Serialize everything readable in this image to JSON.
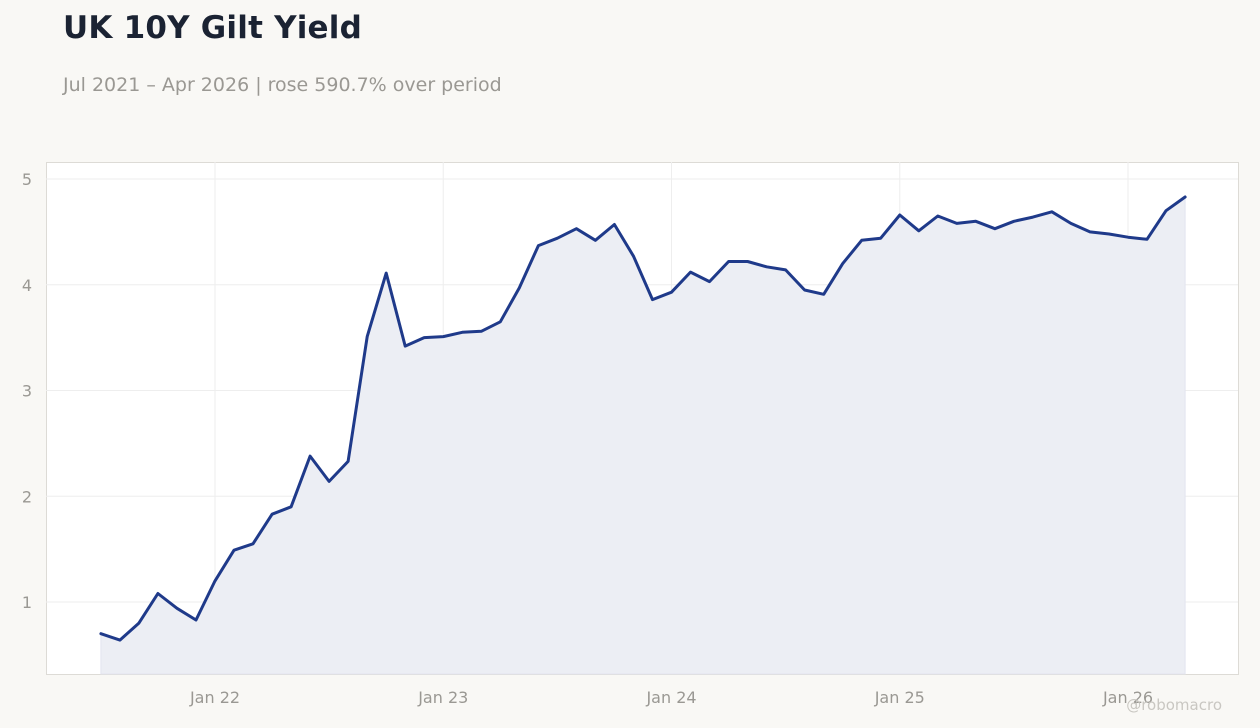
{
  "chart_data": {
    "type": "area",
    "title": "UK 10Y Gilt Yield",
    "subtitle": "Jul 2021 – Apr 2026 | rose 590.7% over period",
    "xlabel": "",
    "ylabel": "",
    "x_start": "2021-07",
    "x_end": "2026-04",
    "x_ticks": [
      "Jan 22",
      "Jan 23",
      "Jan 24",
      "Jan 25",
      "Jan 26"
    ],
    "y_ticks": [
      1,
      2,
      3,
      4,
      5
    ],
    "ylim": [
      0.3,
      5.15
    ],
    "grid": true,
    "legend": "none",
    "colors": {
      "line": "#1f3a8a",
      "fill": "#eceef4",
      "grid": "#eeeeee",
      "frame": "#dddbd6"
    },
    "series": [
      {
        "values": [
          0.7,
          0.64,
          0.8,
          1.08,
          0.94,
          0.83,
          1.2,
          1.49,
          1.55,
          1.83,
          1.9,
          2.38,
          2.14,
          2.33,
          3.51,
          4.11,
          3.42,
          3.5,
          3.51,
          3.55,
          3.56,
          3.65,
          3.97,
          4.37,
          4.44,
          4.53,
          4.42,
          4.57,
          4.27,
          3.86,
          3.93,
          4.12,
          4.03,
          4.22,
          4.22,
          4.17,
          4.14,
          3.95,
          3.91,
          4.2,
          4.42,
          4.44,
          4.66,
          4.51,
          4.65,
          4.58,
          4.6,
          4.53,
          4.6,
          4.64,
          4.69,
          4.58,
          4.5,
          4.48,
          4.45,
          4.43,
          4.7,
          4.83
        ]
      }
    ]
  },
  "watermark": "@robomacro"
}
